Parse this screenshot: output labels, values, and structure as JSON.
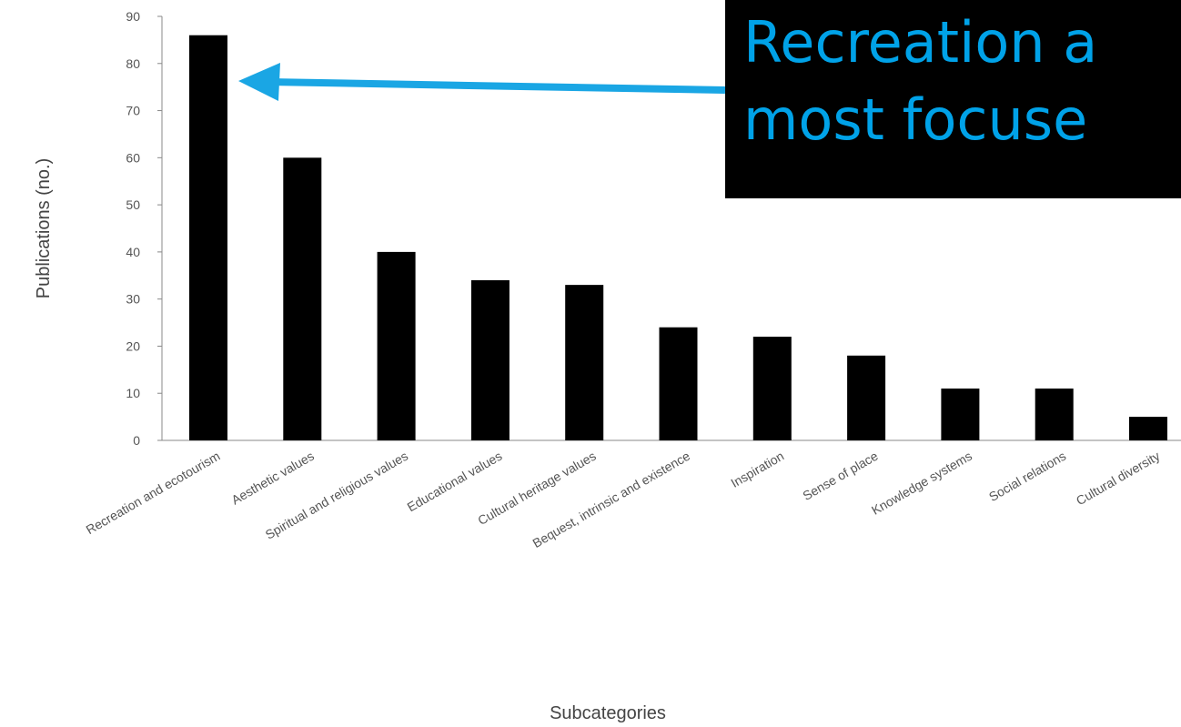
{
  "chart_data": {
    "type": "bar",
    "title": "",
    "xlabel": "Subcategories",
    "ylabel": "Publications (no.)",
    "ylim": [
      0,
      90
    ],
    "yticks": [
      0,
      10,
      20,
      30,
      40,
      50,
      60,
      70,
      80,
      90
    ],
    "grid": false,
    "categories": [
      "Recreation and ecotourism",
      "Aesthetic values",
      "Spiritual and religious values",
      "Educational values",
      "Cultural heritage values",
      "Bequest, intrinsic and existence",
      "Inspiration",
      "Sense of place",
      "Knowledge systems",
      "Social relations",
      "Cultural diversity"
    ],
    "values": [
      86,
      60,
      40,
      34,
      33,
      24,
      22,
      18,
      11,
      11,
      5
    ],
    "bar_color": "#000000"
  },
  "annotation": {
    "line1": "Recreation a",
    "line2": "most focuse",
    "text_color": "#00a2e8",
    "box_color": "#000000",
    "arrow_color": "#1aa6e4",
    "points_to": "Recreation and ecotourism"
  }
}
